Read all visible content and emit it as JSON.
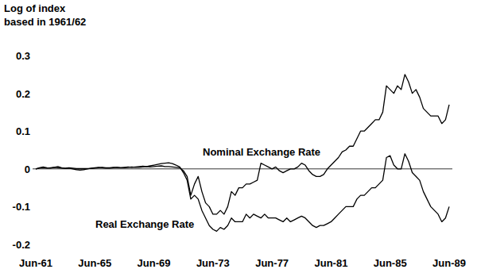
{
  "chart_data": {
    "type": "line",
    "ylabel": [
      "Log of index",
      "based in 1961/62"
    ],
    "categories": [
      "Jun-61",
      null,
      null,
      null,
      null,
      null,
      null,
      null,
      null,
      null,
      null,
      null,
      null,
      null,
      null,
      null,
      "Jun-65",
      null,
      null,
      null,
      null,
      null,
      null,
      null,
      null,
      null,
      null,
      null,
      null,
      null,
      null,
      null,
      "Jun-69",
      null,
      null,
      null,
      null,
      null,
      null,
      null,
      null,
      null,
      null,
      null,
      null,
      null,
      null,
      null,
      "Jun-73",
      null,
      null,
      null,
      null,
      null,
      null,
      null,
      null,
      null,
      null,
      null,
      null,
      null,
      null,
      null,
      "Jun-77",
      null,
      null,
      null,
      null,
      null,
      null,
      null,
      null,
      null,
      null,
      null,
      null,
      null,
      null,
      null,
      "Jun-81",
      null,
      null,
      null,
      null,
      null,
      null,
      null,
      null,
      null,
      null,
      null,
      null,
      null,
      null,
      null,
      "Jun-85",
      null,
      null,
      null,
      null,
      null,
      null,
      null,
      null,
      null,
      null,
      null,
      null,
      null,
      null,
      null,
      "Jun-89"
    ],
    "series": [
      {
        "name": "Nominal Exchange Rate",
        "color": "#000000",
        "values": [
          0,
          0.002,
          0.003,
          0.002,
          0.003,
          0.004,
          0.003,
          0.002,
          0.002,
          0.003,
          0.002,
          0.001,
          0.001,
          0.001,
          0.001,
          0.001,
          0.002,
          0.003,
          0.004,
          0.003,
          0.003,
          0.004,
          0.004,
          0.003,
          0.003,
          0.004,
          0.005,
          0.004,
          0.004,
          0.005,
          0.006,
          0.005,
          0.006,
          0.007,
          0.008,
          0.006,
          0.006,
          0.005,
          0.004,
          0.003,
          -0.005,
          -0.02,
          -0.07,
          -0.04,
          -0.02,
          -0.06,
          -0.09,
          -0.1,
          -0.12,
          -0.12,
          -0.11,
          -0.12,
          -0.1,
          -0.06,
          -0.07,
          -0.05,
          -0.05,
          -0.04,
          -0.04,
          -0.035,
          -0.03,
          0.015,
          0.01,
          0.005,
          0,
          0.005,
          -0.005,
          -0.01,
          -0.005,
          0,
          0,
          0.005,
          0.015,
          0.01,
          -0.005,
          -0.015,
          -0.02,
          -0.02,
          -0.015,
          0,
          0.01,
          0.02,
          0.03,
          0.045,
          0.05,
          0.06,
          0.06,
          0.08,
          0.1,
          0.1,
          0.11,
          0.12,
          0.13,
          0.13,
          0.15,
          0.22,
          0.21,
          0.2,
          0.22,
          0.21,
          0.25,
          0.23,
          0.2,
          0.21,
          0.19,
          0.16,
          0.15,
          0.14,
          0.14,
          0.14,
          0.12,
          0.13,
          0.17
        ]
      },
      {
        "name": "Real Exchange Rate",
        "color": "#000000",
        "values": [
          0,
          0.003,
          0.005,
          0.003,
          0.002,
          0.004,
          0.006,
          0.003,
          0.001,
          0.002,
          0,
          -0.002,
          -0.003,
          -0.002,
          0,
          0.002,
          0.003,
          0.004,
          0.003,
          0.002,
          0.002,
          0.003,
          0.004,
          0.003,
          0.004,
          0.005,
          0.004,
          0.005,
          0.006,
          0.007,
          0.006,
          0.008,
          0.01,
          0.012,
          0.014,
          0.015,
          0.016,
          0.014,
          0.01,
          0.005,
          -0.01,
          -0.03,
          -0.08,
          -0.07,
          -0.08,
          -0.11,
          -0.13,
          -0.15,
          -0.16,
          -0.165,
          -0.155,
          -0.16,
          -0.15,
          -0.13,
          -0.14,
          -0.14,
          -0.14,
          -0.12,
          -0.13,
          -0.12,
          -0.125,
          -0.13,
          -0.12,
          -0.13,
          -0.13,
          -0.13,
          -0.135,
          -0.14,
          -0.13,
          -0.14,
          -0.135,
          -0.13,
          -0.125,
          -0.13,
          -0.14,
          -0.15,
          -0.155,
          -0.15,
          -0.15,
          -0.145,
          -0.14,
          -0.13,
          -0.12,
          -0.11,
          -0.1,
          -0.1,
          -0.1,
          -0.08,
          -0.07,
          -0.07,
          -0.06,
          -0.05,
          -0.05,
          -0.04,
          -0.03,
          0.03,
          0.035,
          0.01,
          0,
          0,
          0.04,
          0.02,
          -0.01,
          -0.02,
          -0.03,
          -0.06,
          -0.08,
          -0.1,
          -0.11,
          -0.12,
          -0.14,
          -0.13,
          -0.1
        ]
      }
    ],
    "ylim": [
      -0.2,
      0.3
    ],
    "yticks": [
      -0.2,
      -0.1,
      0,
      0.1,
      0.2,
      0.3
    ],
    "grid": false
  }
}
